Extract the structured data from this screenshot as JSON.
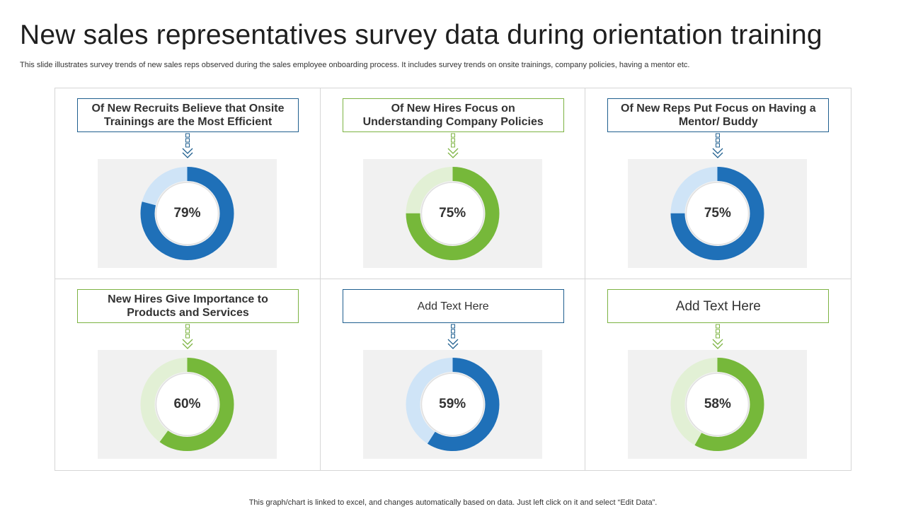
{
  "title": "New sales representatives survey data during orientation training",
  "subtitle": "This slide illustrates survey trends of new sales reps observed during the sales employee onboarding process. It includes survey trends on onsite trainings, company policies, having a mentor etc.",
  "footer": "This graph/chart is linked to excel,  and changes automatically based on data. Just left click on it and select “Edit Data”.",
  "colors": {
    "blue": "#1f70b8",
    "blue_light": "#cfe4f7",
    "green": "#76b83a",
    "green_light": "#e2f0d5",
    "blue_border": "#1f5f8f",
    "green_border": "#7cb342"
  },
  "chart_data": [
    {
      "type": "pie",
      "label": "Of New Recruits Believe that Onsite Trainings are the Most Efficient",
      "value": 79,
      "value_label": "79%",
      "theme": "blue",
      "label_style": "bold"
    },
    {
      "type": "pie",
      "label": "Of New Hires Focus on Understanding Company Policies",
      "value": 75,
      "value_label": "75%",
      "theme": "green",
      "label_style": "bold"
    },
    {
      "type": "pie",
      "label": "Of New Reps Put Focus on Having a Mentor/ Buddy",
      "value": 75,
      "value_label": "75%",
      "theme": "blue",
      "label_style": "bold"
    },
    {
      "type": "pie",
      "label": "New Hires Give Importance to Products and Services",
      "value": 60,
      "value_label": "60%",
      "theme": "green",
      "label_style": "bold"
    },
    {
      "type": "pie",
      "label": "Add Text Here",
      "value": 59,
      "value_label": "59%",
      "theme": "blue",
      "label_style": "plain"
    },
    {
      "type": "pie",
      "label": "Add Text Here",
      "value": 58,
      "value_label": "58%",
      "theme": "green",
      "label_style": "big"
    }
  ]
}
